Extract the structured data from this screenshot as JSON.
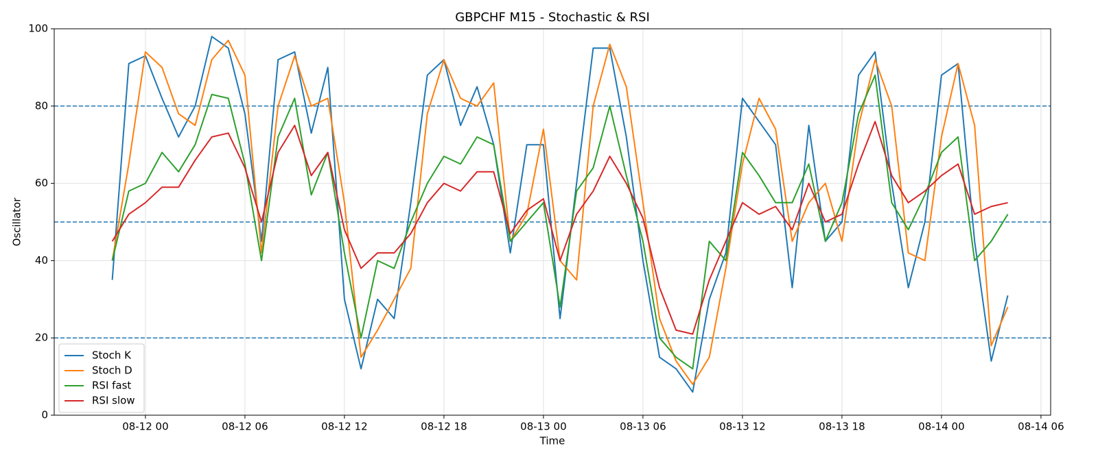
{
  "chart_data": {
    "type": "line",
    "title": "GBPCHF M15 - Stochastic & RSI",
    "x_label": "Time",
    "y_label": "Oscillator",
    "x": [
      "08-11 22",
      "08-11 23",
      "08-12 00",
      "08-12 01",
      "08-12 02",
      "08-12 03",
      "08-12 04",
      "08-12 05",
      "08-12 06",
      "08-12 07",
      "08-12 08",
      "08-12 09",
      "08-12 10",
      "08-12 11",
      "08-12 12",
      "08-12 13",
      "08-12 14",
      "08-12 15",
      "08-12 16",
      "08-12 17",
      "08-12 18",
      "08-12 19",
      "08-12 20",
      "08-12 21",
      "08-12 22",
      "08-12 23",
      "08-13 00",
      "08-13 01",
      "08-13 02",
      "08-13 03",
      "08-13 04",
      "08-13 05",
      "08-13 06",
      "08-13 07",
      "08-13 08",
      "08-13 09",
      "08-13 10",
      "08-13 11",
      "08-13 12",
      "08-13 13",
      "08-13 14",
      "08-13 15",
      "08-13 16",
      "08-13 17",
      "08-13 18",
      "08-13 19",
      "08-13 20",
      "08-13 21",
      "08-13 22",
      "08-13 23",
      "08-14 00",
      "08-14 01",
      "08-14 02",
      "08-14 03",
      "08-14 04"
    ],
    "series": [
      {
        "name": "Stoch K",
        "color": "#1f77b4",
        "values": [
          35,
          91,
          93,
          82,
          72,
          80,
          98,
          95,
          78,
          45,
          92,
          94,
          73,
          90,
          30,
          12,
          30,
          25,
          55,
          88,
          92,
          75,
          85,
          70,
          42,
          70,
          70,
          25,
          60,
          95,
          95,
          72,
          40,
          15,
          12,
          6,
          30,
          42,
          82,
          76,
          70,
          33,
          75,
          45,
          50,
          88,
          94,
          60,
          33,
          50,
          88,
          91,
          45,
          14,
          31
        ]
      },
      {
        "name": "Stoch D",
        "color": "#ff7f0e",
        "values": [
          40,
          65,
          94,
          90,
          78,
          75,
          92,
          97,
          88,
          42,
          80,
          93,
          80,
          82,
          55,
          15,
          22,
          30,
          38,
          78,
          92,
          82,
          80,
          86,
          45,
          52,
          74,
          40,
          35,
          80,
          96,
          85,
          55,
          25,
          14,
          8,
          15,
          38,
          65,
          82,
          74,
          45,
          55,
          60,
          45,
          75,
          92,
          80,
          42,
          40,
          72,
          91,
          75,
          18,
          28
        ]
      },
      {
        "name": "RSI fast",
        "color": "#2ca02c",
        "values": [
          40,
          58,
          60,
          68,
          63,
          70,
          83,
          82,
          65,
          40,
          72,
          82,
          57,
          68,
          42,
          20,
          40,
          38,
          50,
          60,
          67,
          65,
          72,
          70,
          45,
          50,
          55,
          28,
          58,
          64,
          80,
          62,
          45,
          20,
          15,
          12,
          45,
          40,
          68,
          62,
          55,
          55,
          65,
          45,
          55,
          78,
          88,
          55,
          48,
          57,
          68,
          72,
          40,
          45,
          52
        ]
      },
      {
        "name": "RSI slow",
        "color": "#d62728",
        "values": [
          45,
          52,
          55,
          59,
          59,
          66,
          72,
          73,
          64,
          50,
          68,
          75,
          62,
          68,
          48,
          38,
          42,
          42,
          47,
          55,
          60,
          58,
          63,
          63,
          47,
          53,
          56,
          40,
          52,
          58,
          67,
          60,
          51,
          33,
          22,
          21,
          35,
          45,
          55,
          52,
          54,
          48,
          60,
          50,
          52,
          65,
          76,
          62,
          55,
          58,
          62,
          65,
          52,
          54,
          55
        ]
      }
    ],
    "reference_lines": [
      20,
      50,
      80
    ],
    "reference_color": "#1f77b4",
    "xlim": [
      "08-11 18:30",
      "08-14 06:35"
    ],
    "xticks": [
      "08-12 00",
      "08-12 06",
      "08-12 12",
      "08-12 18",
      "08-13 00",
      "08-13 06",
      "08-13 12",
      "08-13 18",
      "08-14 00",
      "08-14 06"
    ],
    "ylim": [
      0,
      100
    ],
    "yticks": [
      0,
      20,
      40,
      60,
      80,
      100
    ],
    "grid": true,
    "legend": "lower left"
  }
}
